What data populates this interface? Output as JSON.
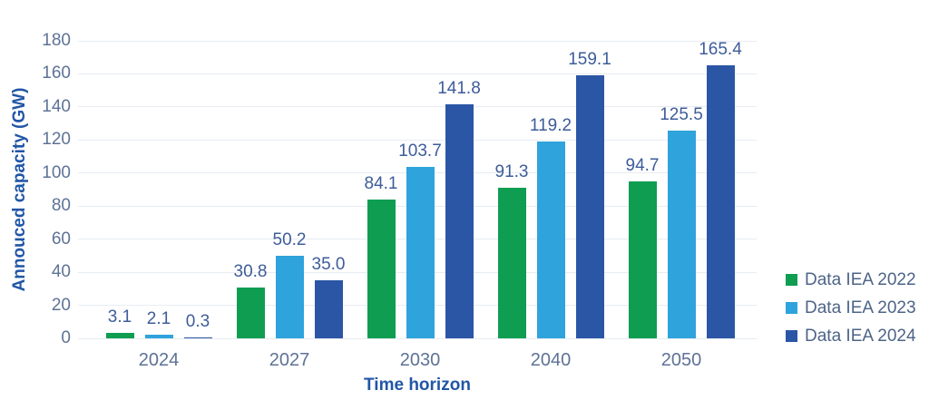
{
  "chart_data": {
    "type": "bar",
    "title": "",
    "xlabel": "Time horizon",
    "ylabel": "Annouced capacity (GW)",
    "categories": [
      "2024",
      "2027",
      "2030",
      "2040",
      "2050"
    ],
    "series": [
      {
        "name": "Data IEA 2022",
        "color": "#0f9d51",
        "values": [
          3.1,
          30.8,
          84.1,
          91.3,
          94.7
        ]
      },
      {
        "name": "Data IEA 2023",
        "color": "#2fa3db",
        "values": [
          2.1,
          50.2,
          103.7,
          119.2,
          125.5
        ]
      },
      {
        "name": "Data IEA 2024",
        "color": "#2b56a5",
        "values": [
          0.3,
          35.0,
          141.8,
          159.1,
          165.4
        ]
      }
    ],
    "ylim": [
      0,
      180
    ],
    "ytick_step": 20,
    "grid": "horizontal",
    "legend_position": "right",
    "value_labels": true,
    "value_label_decimals": 1
  },
  "colors": {
    "gridline": "#e7ecf2",
    "tick_label": "#5e7296",
    "category_label": "#5e7296",
    "value_label": "#3d5c99",
    "axis_title": "#2156a6",
    "legend_text": "#4d6487",
    "background": "#ffffff"
  }
}
